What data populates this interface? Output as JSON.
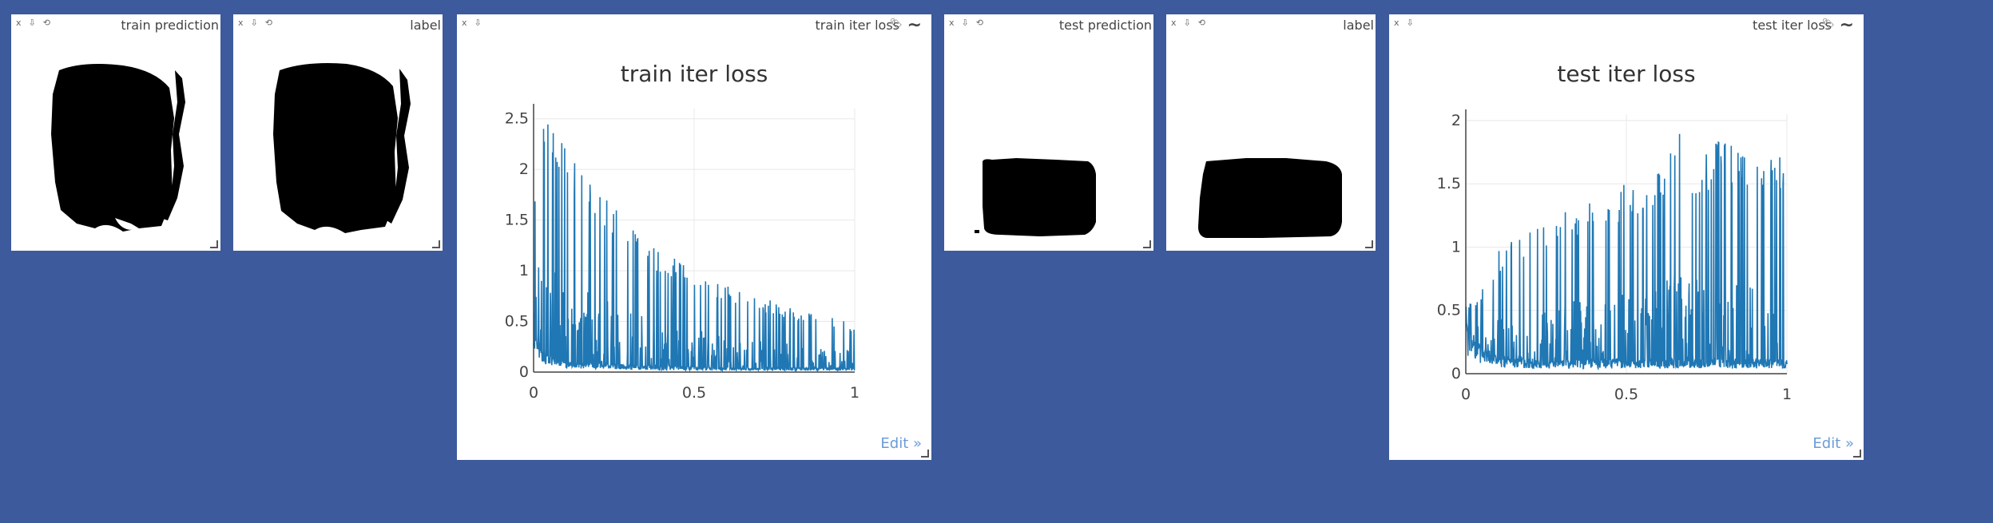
{
  "panes": {
    "train_prediction": {
      "title": "train prediction"
    },
    "train_label": {
      "title": "label"
    },
    "train_loss": {
      "title": "train iter loss",
      "chart_title": "train iter loss",
      "edit": "Edit »"
    },
    "test_prediction": {
      "title": "test prediction"
    },
    "test_label": {
      "title": "label"
    },
    "test_loss": {
      "title": "test iter loss",
      "chart_title": "test iter loss",
      "edit": "Edit »"
    }
  },
  "icons": [
    "close-icon",
    "download-icon",
    "reset-icon",
    "tag-icon",
    "smooth-wave-icon",
    "resize-handle-icon"
  ],
  "colors": {
    "background": "#3c5a9c",
    "series": "#1f77b4",
    "edit_link": "#6b9bd8"
  },
  "chart_data": [
    {
      "type": "line",
      "title": "train iter loss",
      "xlabel": "",
      "ylabel": "",
      "xlim": [
        0,
        1
      ],
      "ylim": [
        0,
        2.6
      ],
      "x_ticks": [
        "0",
        "0.5",
        "1"
      ],
      "y_ticks": [
        "0",
        "0.5",
        "1",
        "1.5",
        "2",
        "2.5"
      ],
      "grid": true,
      "series": [
        {
          "style": "noisy dense spikes over decaying baseline",
          "envelope_x": [
            0,
            0.02,
            0.05,
            0.08,
            0.1,
            0.15,
            0.2,
            0.3,
            0.4,
            0.5,
            0.6,
            0.7,
            0.8,
            0.9,
            1.0
          ],
          "envelope_y": [
            1.8,
            2.45,
            2.5,
            2.45,
            2.2,
            2.0,
            1.8,
            1.5,
            1.2,
            1.0,
            0.85,
            0.75,
            0.65,
            0.55,
            0.5
          ],
          "baseline_y": [
            0.5,
            0.2,
            0.12,
            0.1,
            0.08,
            0.07,
            0.06,
            0.05,
            0.04,
            0.04,
            0.03,
            0.03,
            0.03,
            0.03,
            0.03
          ]
        }
      ]
    },
    {
      "type": "line",
      "title": "test iter loss",
      "xlabel": "",
      "ylabel": "",
      "xlim": [
        0,
        1
      ],
      "ylim": [
        0,
        2.05
      ],
      "x_ticks": [
        "0",
        "0.5",
        "1"
      ],
      "y_ticks": [
        "0",
        "0.5",
        "1",
        "1.5",
        "2"
      ],
      "grid": true,
      "series": [
        {
          "style": "noisy dense spikes, rising envelope",
          "envelope_x": [
            0,
            0.05,
            0.1,
            0.2,
            0.3,
            0.4,
            0.5,
            0.6,
            0.67,
            0.7,
            0.8,
            0.9,
            1.0
          ],
          "envelope_y": [
            0.55,
            0.7,
            1.0,
            1.15,
            1.3,
            1.4,
            1.5,
            1.6,
            2.0,
            1.7,
            1.9,
            1.85,
            1.8
          ],
          "baseline_y": [
            0.3,
            0.15,
            0.1,
            0.08,
            0.08,
            0.08,
            0.08,
            0.08,
            0.08,
            0.08,
            0.08,
            0.08,
            0.08
          ]
        }
      ]
    }
  ]
}
